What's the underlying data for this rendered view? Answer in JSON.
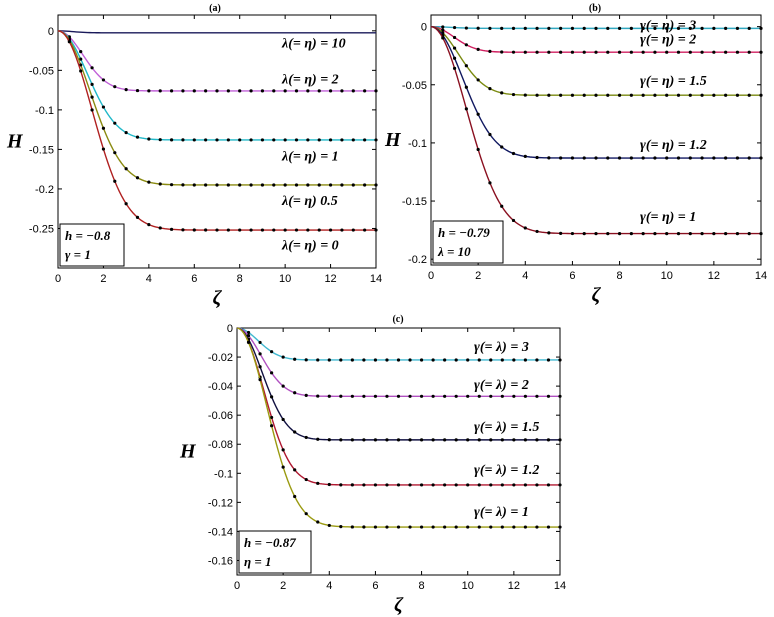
{
  "chart_data": [
    {
      "type": "line",
      "title": "(a)",
      "xlabel": "ζ",
      "ylabel": "H",
      "xlim": [
        0,
        14
      ],
      "ylim": [
        -0.3,
        0.02
      ],
      "xticks": [
        "0",
        "2",
        "4",
        "6",
        "8",
        "10",
        "12",
        "14"
      ],
      "yticks": [
        {
          "v": 0,
          "t": "0"
        },
        {
          "v": -0.05,
          "t": "-0.05"
        },
        {
          "v": -0.1,
          "t": "-0.1"
        },
        {
          "v": -0.15,
          "t": "-0.15"
        },
        {
          "v": -0.2,
          "t": "-0.2"
        },
        {
          "v": -0.25,
          "t": "-0.25"
        }
      ],
      "params": [
        "h = −0.8",
        "γ = 1"
      ],
      "series": [
        {
          "label": "λ(= η) = 10",
          "color": "#1a1a5a",
          "asymptote": -0.0025,
          "rate": 2.5,
          "dots": false,
          "label_y": -0.015
        },
        {
          "label": "λ(= η) = 2",
          "color": "#c060d8",
          "asymptote": -0.076,
          "rate": 0.85,
          "dots": true,
          "label_y": -0.06
        },
        {
          "label": "λ(= η) = 1",
          "color": "#20b8c8",
          "asymptote": -0.138,
          "rate": 0.6,
          "dots": true,
          "label_y": -0.158
        },
        {
          "label": "λ(= η)  0.5",
          "color": "#8a8a10",
          "asymptote": -0.195,
          "rate": 0.5,
          "dots": true,
          "label_y": -0.214
        },
        {
          "label": "λ(= η) = 0",
          "color": "#b02020",
          "asymptote": -0.252,
          "rate": 0.45,
          "dots": true,
          "label_y": -0.27
        }
      ]
    },
    {
      "type": "line",
      "title": "(b)",
      "xlabel": "ζ",
      "ylabel": "H",
      "xlim": [
        0,
        14
      ],
      "ylim": [
        -0.205,
        0.01
      ],
      "xticks": [
        "0",
        "2",
        "4",
        "6",
        "8",
        "10",
        "12",
        "14"
      ],
      "yticks": [
        {
          "v": 0,
          "t": "0"
        },
        {
          "v": -0.05,
          "t": "-0.05"
        },
        {
          "v": -0.1,
          "t": "-0.1"
        },
        {
          "v": -0.15,
          "t": "-0.15"
        },
        {
          "v": -0.2,
          "t": "-0.2"
        }
      ],
      "params": [
        "h = −0.79",
        "λ = 10"
      ],
      "series": [
        {
          "label": "γ(= η) = 3",
          "color": "#30a8c0",
          "asymptote": -0.0015,
          "rate": 1.5,
          "dots": true,
          "label_y": 0.002
        },
        {
          "label": "γ(= η) = 2",
          "color": "#d02060",
          "asymptote": -0.022,
          "rate": 1.1,
          "dots": true,
          "label_y": -0.01
        },
        {
          "label": "γ(= η) = 1.5",
          "color": "#7a8a10",
          "asymptote": -0.059,
          "rate": 0.75,
          "dots": true,
          "label_y": -0.046
        },
        {
          "label": "γ(= η) = 1.2",
          "color": "#101860",
          "asymptote": -0.113,
          "rate": 0.55,
          "dots": true,
          "label_y": -0.101
        },
        {
          "label": "γ(= η) = 1",
          "color": "#8a1020",
          "asymptote": -0.178,
          "rate": 0.45,
          "dots": true,
          "label_y": -0.163
        }
      ]
    },
    {
      "type": "line",
      "title": "(c)",
      "xlabel": "ζ",
      "ylabel": "H",
      "xlim": [
        0,
        14
      ],
      "ylim": [
        -0.17,
        0.0
      ],
      "xticks": [
        "0",
        "2",
        "4",
        "6",
        "8",
        "10",
        "12",
        "14"
      ],
      "yticks": [
        {
          "v": 0,
          "t": "0"
        },
        {
          "v": -0.02,
          "t": "-0.02"
        },
        {
          "v": -0.04,
          "t": "-0.04"
        },
        {
          "v": -0.06,
          "t": "-0.06"
        },
        {
          "v": -0.08,
          "t": "-0.08"
        },
        {
          "v": -0.1,
          "t": "-0.1"
        },
        {
          "v": -0.12,
          "t": "-0.12"
        },
        {
          "v": -0.14,
          "t": "-0.14"
        },
        {
          "v": -0.16,
          "t": "-0.16"
        }
      ],
      "params": [
        "h = −0.87",
        "η = 1"
      ],
      "series": [
        {
          "label": "γ(= λ) = 3",
          "color": "#40b8d0",
          "asymptote": -0.022,
          "rate": 1.2,
          "dots": true,
          "label_y": -0.0125
        },
        {
          "label": "γ(= λ) = 2",
          "color": "#b050c0",
          "asymptote": -0.047,
          "rate": 0.95,
          "dots": true,
          "label_y": -0.0385
        },
        {
          "label": "γ(= λ) = 1.5",
          "color": "#101040",
          "asymptote": -0.077,
          "rate": 0.85,
          "dots": true,
          "label_y": -0.0675
        },
        {
          "label": "γ(= λ) = 1.2",
          "color": "#b01830",
          "asymptote": -0.108,
          "rate": 0.75,
          "dots": true,
          "label_y": -0.097
        },
        {
          "label": "γ(= λ) = 1",
          "color": "#9a9a10",
          "asymptote": -0.137,
          "rate": 0.6,
          "dots": true,
          "label_y": -0.126
        }
      ]
    }
  ]
}
